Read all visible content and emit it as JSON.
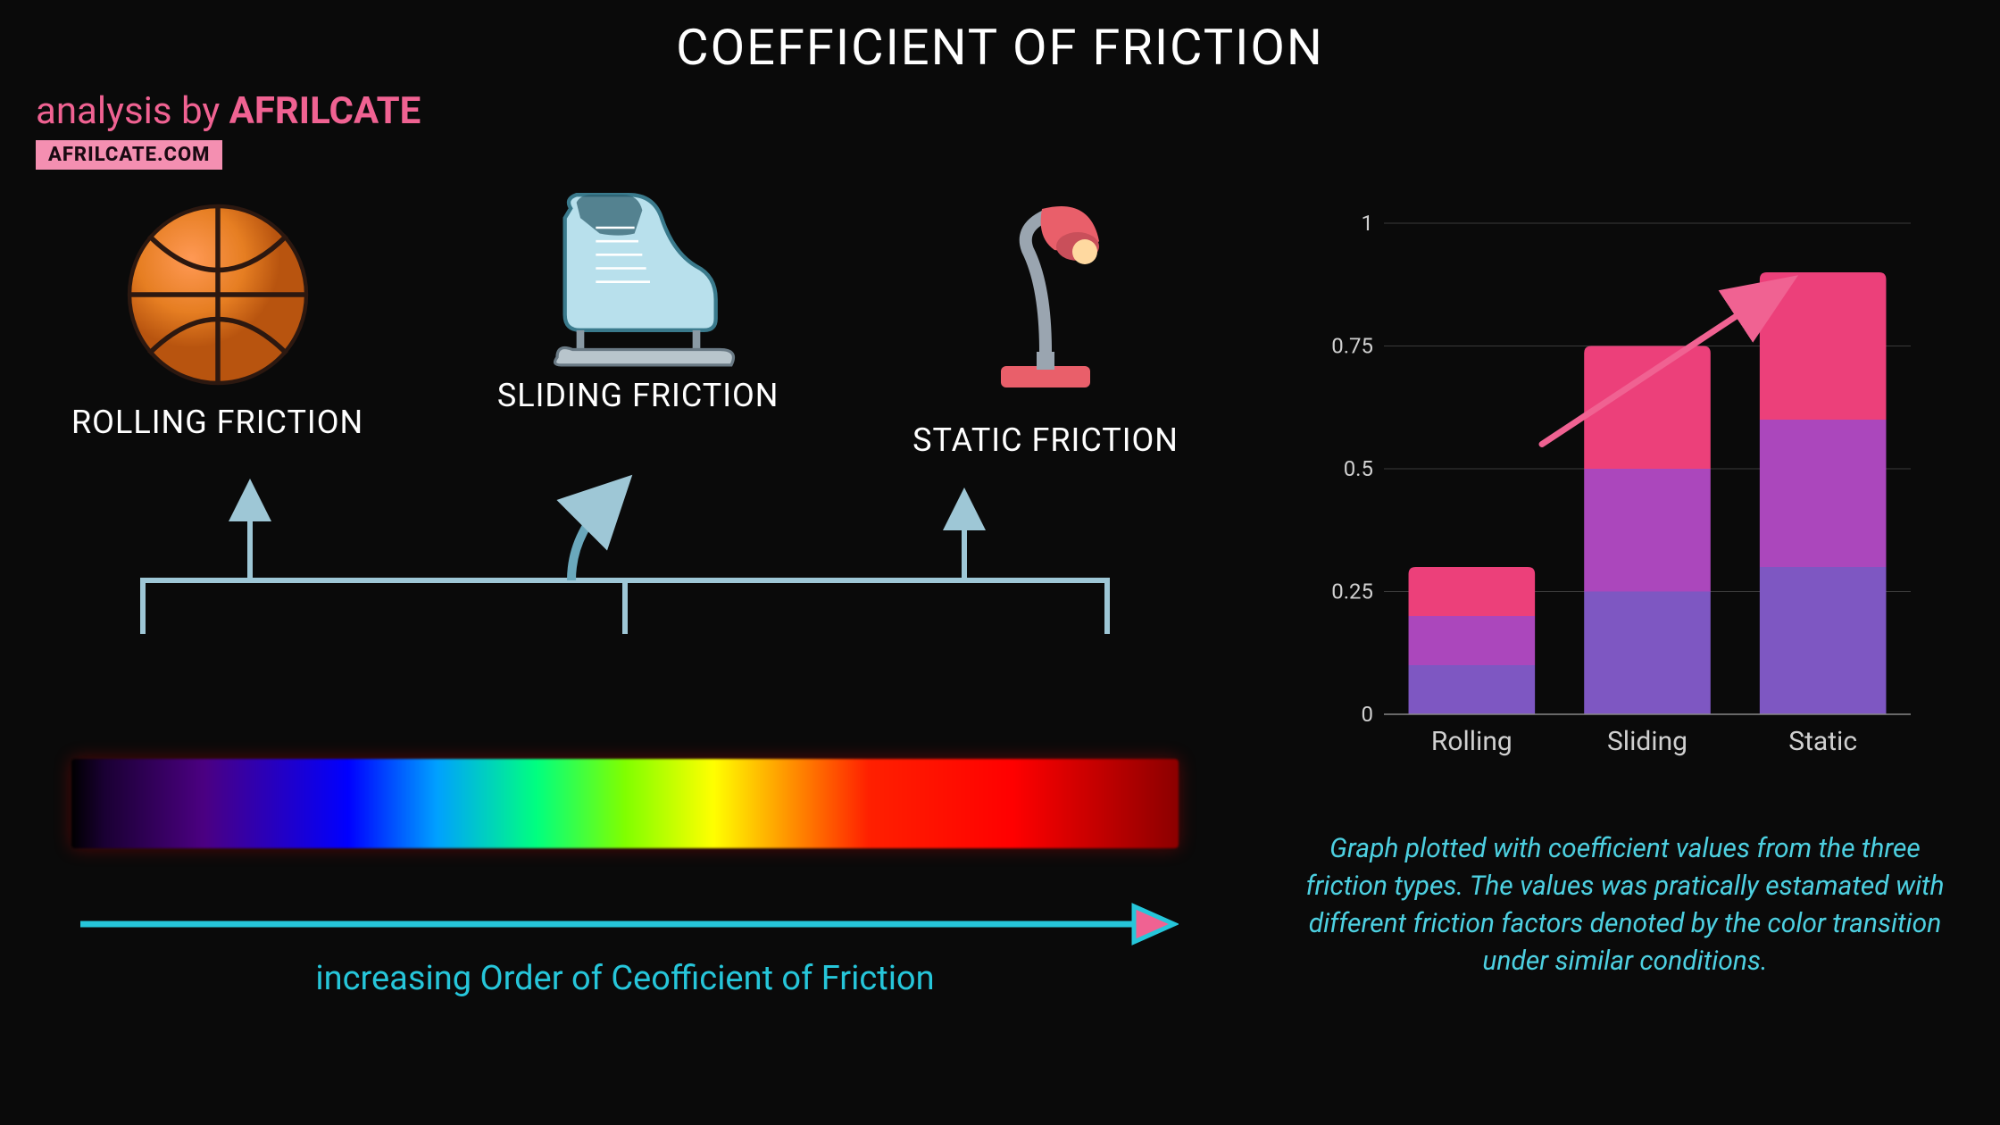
{
  "title": "COEFFICIENT OF FRICTION",
  "brand": {
    "prefix": "analysis by ",
    "name": "AFRILCATE",
    "badge": "AFRILCATE.COM",
    "color": "#f06292",
    "badge_bg": "#f48fb1",
    "badge_fg": "#1a0a12"
  },
  "background_color": "#0a0a0a",
  "friction_items": [
    {
      "label": "ROLLING FRICTION",
      "icon": "basketball"
    },
    {
      "label": "SLIDING FRICTION",
      "icon": "ice-skate"
    },
    {
      "label": "STATIC FRICTION",
      "icon": "desk-lamp"
    }
  ],
  "spectrum": {
    "gradient_stops": [
      "#000000",
      "#1a0033",
      "#4b0082",
      "#0000ff",
      "#00a0ff",
      "#00ff80",
      "#80ff00",
      "#ffff00",
      "#ff8000",
      "#ff2000",
      "#ff0000",
      "#8b0000"
    ],
    "caption": "increasing Order of Ceofficient of Friction",
    "arrow_color": "#26c6da",
    "arrow_head_fill": "#f06292",
    "bracket_color": "#9ec7d6"
  },
  "chart": {
    "type": "stacked-bar",
    "categories": [
      "Rolling",
      "Sliding",
      "Static"
    ],
    "ylim": [
      0,
      1
    ],
    "yticks": [
      0,
      0.25,
      0.5,
      0.75,
      1
    ],
    "grid_color": "#3a3a3a",
    "axis_color": "#888888",
    "label_color": "#d0d0d0",
    "label_fontsize": 30,
    "tick_fontsize": 24,
    "bar_width": 0.72,
    "segment_colors": [
      "#7e57c2",
      "#ab47bc",
      "#ec407a"
    ],
    "series": [
      {
        "category": "Rolling",
        "segments": [
          0.1,
          0.1,
          0.1
        ],
        "total": 0.3
      },
      {
        "category": "Sliding",
        "segments": [
          0.25,
          0.25,
          0.25
        ],
        "total": 0.75
      },
      {
        "category": "Static",
        "segments": [
          0.3,
          0.3,
          0.3
        ],
        "total": 0.9
      }
    ],
    "trend_arrow_color": "#f06292"
  },
  "chart_caption": "Graph plotted with coefficient values from the three friction types. The values was pratically estamated with different friction factors denoted by the color transition under similar conditions."
}
